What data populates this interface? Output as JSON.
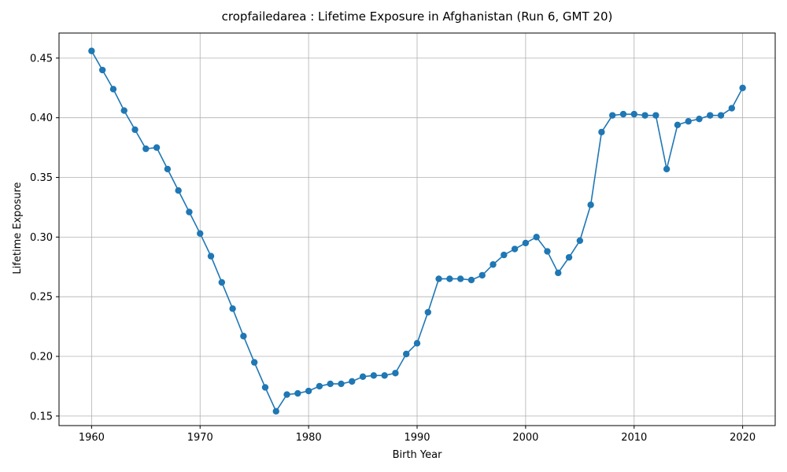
{
  "chart_data": {
    "type": "line",
    "title": "cropfailedarea : Lifetime Exposure in Afghanistan (Run 6, GMT 20)",
    "xlabel": "Birth Year",
    "ylabel": "Lifetime Exposure",
    "xlim": [
      1957,
      2023
    ],
    "ylim": [
      0.142,
      0.471
    ],
    "xticks": [
      1960,
      1970,
      1980,
      1990,
      2000,
      2010,
      2020
    ],
    "yticks": [
      0.15,
      0.2,
      0.25,
      0.3,
      0.35,
      0.4,
      0.45
    ],
    "ytick_labels": [
      "0.15",
      "0.20",
      "0.25",
      "0.30",
      "0.35",
      "0.40",
      "0.45"
    ],
    "grid": true,
    "color": "#1f77b4",
    "marker": "circle",
    "series": [
      {
        "x": [
          1960,
          1961,
          1962,
          1963,
          1964,
          1965,
          1966,
          1967,
          1968,
          1969,
          1970,
          1971,
          1972,
          1973,
          1974,
          1975,
          1976,
          1977,
          1978,
          1979,
          1980,
          1981,
          1982,
          1983,
          1984,
          1985,
          1986,
          1987,
          1988,
          1989,
          1990,
          1991,
          1992,
          1993,
          1994,
          1995,
          1996,
          1997,
          1998,
          1999,
          2000,
          2001,
          2002,
          2003,
          2004,
          2005,
          2006,
          2007,
          2008,
          2009,
          2010,
          2011,
          2012,
          2013,
          2014,
          2015,
          2016,
          2017,
          2018,
          2019,
          2020
        ],
        "values": [
          0.456,
          0.44,
          0.424,
          0.406,
          0.39,
          0.374,
          0.375,
          0.357,
          0.339,
          0.321,
          0.303,
          0.284,
          0.262,
          0.24,
          0.217,
          0.195,
          0.174,
          0.154,
          0.168,
          0.169,
          0.171,
          0.175,
          0.177,
          0.177,
          0.179,
          0.183,
          0.184,
          0.184,
          0.186,
          0.202,
          0.211,
          0.237,
          0.265,
          0.265,
          0.265,
          0.264,
          0.268,
          0.277,
          0.285,
          0.29,
          0.295,
          0.3,
          0.288,
          0.27,
          0.283,
          0.297,
          0.327,
          0.388,
          0.402,
          0.403,
          0.403,
          0.402,
          0.402,
          0.357,
          0.394,
          0.397,
          0.399,
          0.402,
          0.402,
          0.408,
          0.425
        ]
      }
    ]
  }
}
